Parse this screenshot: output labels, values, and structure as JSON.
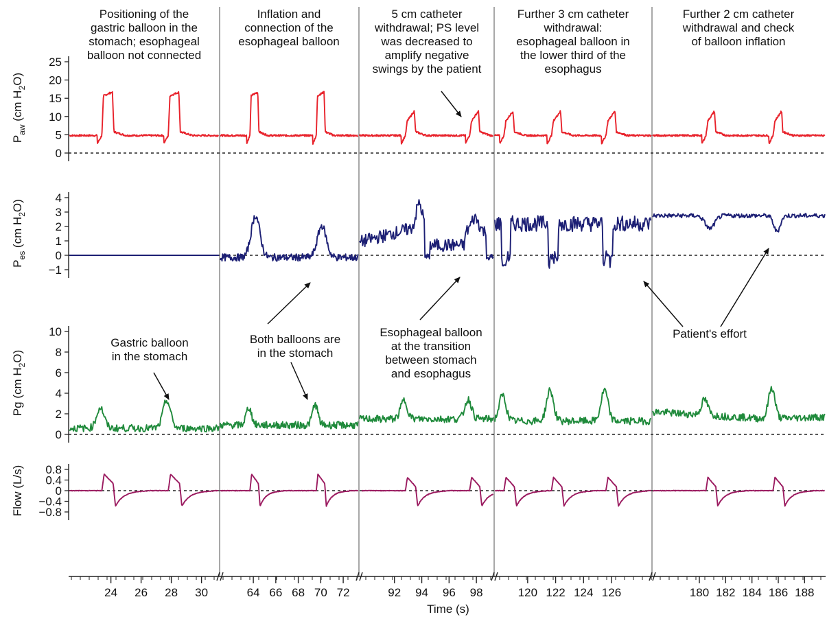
{
  "chart_data": {
    "type": "line",
    "x_axis": {
      "label": "Time (s)",
      "ticks": [
        "24",
        "26",
        "28",
        "30",
        "64",
        "66",
        "68",
        "70",
        "72",
        "92",
        "94",
        "96",
        "98",
        "120",
        "122",
        "124",
        "126",
        "180",
        "182",
        "184",
        "186",
        "188"
      ]
    },
    "segments": [
      {
        "xlim": [
          21.2,
          31.2
        ],
        "header": [
          "Positioning of the",
          "gastric balloon in the",
          "stomach; esophageal",
          "balloon not connected"
        ]
      },
      {
        "xlim": [
          61.0,
          73.4
        ],
        "header": [
          "Inflation and",
          "connection of the",
          "esophageal balloon"
        ]
      },
      {
        "xlim": [
          89.4,
          99.3
        ],
        "header": [
          "5 cm catheter",
          "withdrawal; PS level",
          "was decreased to",
          "amplify negative",
          "swings by the patient"
        ]
      },
      {
        "xlim": [
          117.6,
          128.9
        ],
        "header": [
          "Further 3 cm catheter",
          "withdrawal:",
          "esophageal balloon in",
          "the lower third of the",
          "esophagus"
        ]
      },
      {
        "xlim": [
          176.4,
          189.6
        ],
        "header": [
          "Further 2 cm catheter",
          "withdrawal and check",
          "of balloon inflation"
        ]
      }
    ],
    "panels": [
      {
        "name": "Paw",
        "ylabel_main": "P",
        "ylabel_sub": "aw",
        "ylabel_unit": "(cm H",
        "ylabel_unit_sub": "2",
        "ylabel_unit_end": "O)",
        "color": "#e8222b",
        "ylim": [
          0,
          25
        ],
        "yticks": [
          "0",
          "5",
          "10",
          "15",
          "20",
          "25"
        ]
      },
      {
        "name": "Pes",
        "ylabel_main": "P",
        "ylabel_sub": "es",
        "ylabel_unit": "(cm H",
        "ylabel_unit_sub": "2",
        "ylabel_unit_end": "O)",
        "color": "#1c1f74",
        "ylim": [
          -1,
          4
        ],
        "yticks": [
          "−1",
          "0",
          "1",
          "2",
          "3",
          "4"
        ]
      },
      {
        "name": "Pg",
        "ylabel_main": "Pg",
        "ylabel_sub": "",
        "ylabel_unit": "(cm H",
        "ylabel_unit_sub": "2",
        "ylabel_unit_end": "O)",
        "color": "#1f8a3b",
        "ylim": [
          0,
          10
        ],
        "yticks": [
          "0",
          "2",
          "4",
          "6",
          "8",
          "10"
        ]
      },
      {
        "name": "Flow",
        "ylabel_main": "Flow (L/s)",
        "ylabel_sub": "",
        "ylabel_unit": "",
        "ylabel_unit_sub": "",
        "ylabel_unit_end": "",
        "color": "#9b1b60",
        "ylim": [
          -0.8,
          0.8
        ],
        "yticks": [
          "−0.8",
          "−0.4",
          "0",
          "0.4",
          "0.8"
        ]
      }
    ],
    "annotations": [
      {
        "id": "gastric-stomach",
        "lines": [
          "Gastric balloon",
          "in the stomach"
        ]
      },
      {
        "id": "both-stomach",
        "lines": [
          "Both balloons are",
          "in the stomach"
        ]
      },
      {
        "id": "transition",
        "lines": [
          "Esophageal balloon",
          "at the transition",
          "between stomach",
          "and esophagus"
        ]
      },
      {
        "id": "patient-effort",
        "lines": [
          "Patient's effort"
        ]
      }
    ]
  }
}
